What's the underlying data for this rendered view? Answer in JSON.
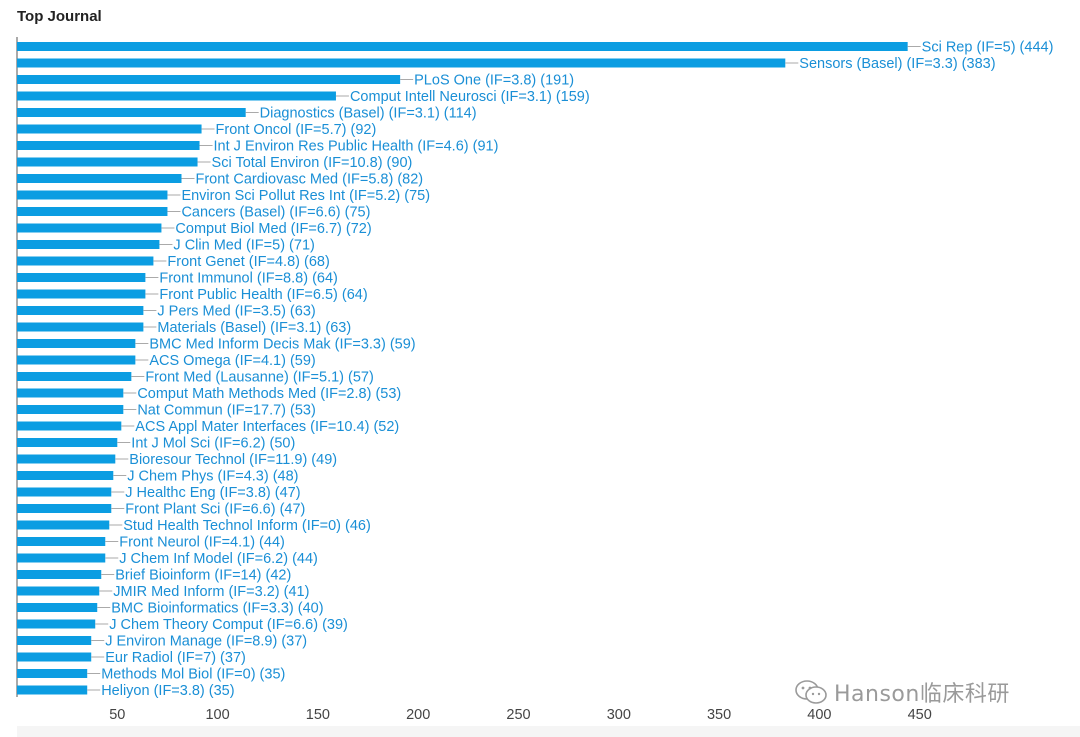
{
  "chart_data": {
    "type": "bar",
    "orientation": "horizontal",
    "title": "Top Journal",
    "xlabel": "",
    "ylabel": "",
    "xlim": [
      0,
      480
    ],
    "xticks": [
      50,
      100,
      150,
      200,
      250,
      300,
      350,
      400,
      450
    ],
    "bar_color": "#0b9de2",
    "label_color": "#1a8fd6",
    "grid": false,
    "categories": [
      "Sci Rep (IF=5) (444)",
      "Sensors (Basel) (IF=3.3) (383)",
      "PLoS One (IF=3.8) (191)",
      "Comput Intell Neurosci (IF=3.1) (159)",
      "Diagnostics (Basel) (IF=3.1) (114)",
      "Front Oncol (IF=5.7) (92)",
      "Int J Environ Res Public Health (IF=4.6) (91)",
      "Sci Total Environ (IF=10.8) (90)",
      "Front Cardiovasc Med (IF=5.8) (82)",
      "Environ Sci Pollut Res Int (IF=5.2) (75)",
      "Cancers (Basel) (IF=6.6) (75)",
      "Comput Biol Med (IF=6.7) (72)",
      "J Clin Med (IF=5) (71)",
      "Front Genet (IF=4.8) (68)",
      "Front Immunol (IF=8.8) (64)",
      "Front Public Health (IF=6.5) (64)",
      "J Pers Med (IF=3.5) (63)",
      "Materials (Basel) (IF=3.1) (63)",
      "BMC Med Inform Decis Mak (IF=3.3) (59)",
      "ACS Omega (IF=4.1) (59)",
      "Front Med (Lausanne) (IF=5.1) (57)",
      "Comput Math Methods Med (IF=2.8) (53)",
      "Nat Commun (IF=17.7) (53)",
      "ACS Appl Mater Interfaces (IF=10.4) (52)",
      "Int J Mol Sci (IF=6.2) (50)",
      "Bioresour Technol (IF=11.9) (49)",
      "J Chem Phys (IF=4.3) (48)",
      "J Healthc Eng (IF=3.8) (47)",
      "Front Plant Sci (IF=6.6) (47)",
      "Stud Health Technol Inform (IF=0) (46)",
      "Front Neurol (IF=4.1) (44)",
      "J Chem Inf Model (IF=6.2) (44)",
      "Brief Bioinform (IF=14) (42)",
      "JMIR Med Inform (IF=3.2) (41)",
      "BMC Bioinformatics (IF=3.3) (40)",
      "J Chem Theory Comput (IF=6.6) (39)",
      "J Environ Manage (IF=8.9) (37)",
      "Eur Radiol (IF=7) (37)",
      "Methods Mol Biol (IF=0) (35)",
      "Heliyon (IF=3.8) (35)"
    ],
    "values": [
      444,
      383,
      191,
      159,
      114,
      92,
      91,
      90,
      82,
      75,
      75,
      72,
      71,
      68,
      64,
      64,
      63,
      63,
      59,
      59,
      57,
      53,
      53,
      52,
      50,
      49,
      48,
      47,
      47,
      46,
      44,
      44,
      42,
      41,
      40,
      39,
      37,
      37,
      35,
      35
    ]
  },
  "watermark": {
    "text": "Hanson临床科研",
    "icon": "wechat-icon",
    "color": "#9a9a9a"
  }
}
